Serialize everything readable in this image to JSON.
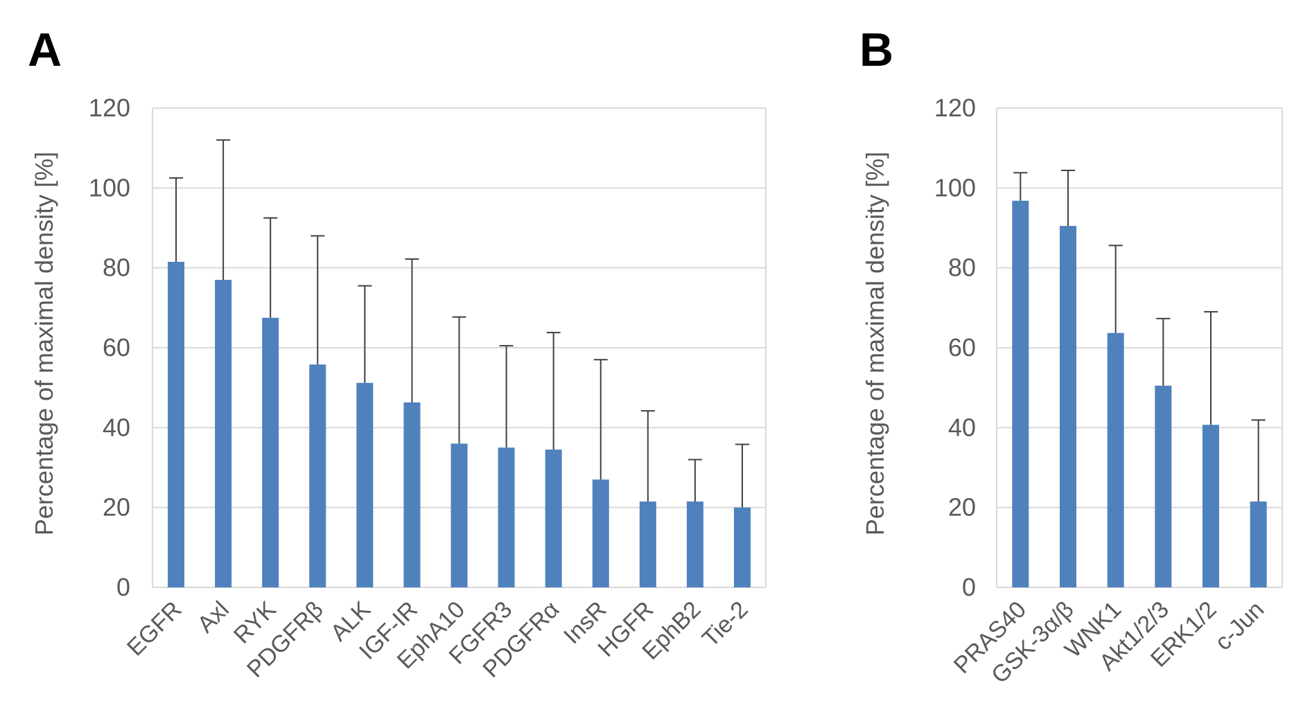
{
  "colors": {
    "bar": "#4f81bd",
    "grid": "#d9d9d9",
    "axis_text": "#595959",
    "error": "#404040"
  },
  "chart_data": [
    {
      "panel": "A",
      "type": "bar",
      "title": "",
      "xlabel": "",
      "ylabel": "Percentage of maximal density [%]",
      "ylim": [
        0,
        120
      ],
      "yticks": [
        "0",
        "20",
        "40",
        "60",
        "80",
        "100",
        "120"
      ],
      "grid": true,
      "categories": [
        "EGFR",
        "Axl",
        "RYK",
        "PDGFRβ",
        "ALK",
        "IGF-IR",
        "EphA10",
        "FGFR3",
        "PDGFRα",
        "InsR",
        "HGFR",
        "EphB2",
        "Tie-2"
      ],
      "values": [
        81.5,
        77,
        67.5,
        55.8,
        51.2,
        46.3,
        36,
        35,
        34.5,
        27,
        21.5,
        21.5,
        20
      ],
      "error_upper": [
        102.5,
        112,
        92.5,
        88,
        75.5,
        82.2,
        67.7,
        60.5,
        63.8,
        57,
        44.2,
        32,
        35.8
      ]
    },
    {
      "panel": "B",
      "type": "bar",
      "title": "",
      "xlabel": "",
      "ylabel": "Percentage of maximal density [%]",
      "ylim": [
        0,
        120
      ],
      "yticks": [
        "0",
        "20",
        "40",
        "60",
        "80",
        "100",
        "120"
      ],
      "grid": true,
      "categories": [
        "PRAS40",
        "GSK-3α/β",
        "WNK1",
        "Akt1/2/3",
        "ERK1/2",
        "c-Jun"
      ],
      "values": [
        96.8,
        90.5,
        63.7,
        50.5,
        40.7,
        21.5
      ],
      "error_upper": [
        103.8,
        104.4,
        85.6,
        67.3,
        69,
        41.9
      ]
    }
  ]
}
